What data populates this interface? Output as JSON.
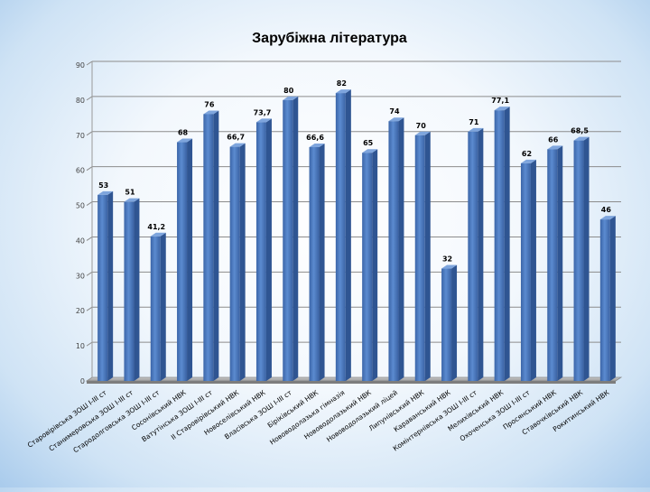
{
  "chart_data": {
    "type": "bar",
    "title": "Зарубіжна література",
    "xlabel": "",
    "ylabel": "",
    "ylim": [
      0,
      90
    ],
    "yticks": [
      "0",
      "10",
      "20",
      "30",
      "40",
      "50",
      "60",
      "70",
      "80",
      "90"
    ],
    "grid": true,
    "bar_color": "#4f7fc4",
    "categories": [
      "Старовірівська ЗОШ І-ІІІ ст",
      "Станимеровська ЗОШ І-ІІІ ст",
      "Стародолговська ЗОШ І-ІІІ ст",
      "Сосонівський НВК",
      "Ватутінська ЗОШ І-ІІІ ст",
      "ІІ Старовірівський НВК",
      "Новоселівський НВК",
      "Власівська ЗОШ І-ІІІ ст",
      "Біріківський НВК",
      "Нововодолазька гімназія",
      "Нововодолазький НВК",
      "Нововодолазький ліцей",
      "Липунівський НВК",
      "Караванський НВК",
      "Комінтернівська ЗОШ І-ІІІ ст",
      "Мелихівський НВК",
      "Охоченська ЗОШ І-ІІІ ст",
      "Просянський НВК",
      "Ставочківський НВК",
      "Рокитинський НВК"
    ],
    "values": [
      53,
      51,
      41.2,
      68,
      76,
      66.7,
      73.7,
      80,
      66.6,
      82,
      65,
      74,
      70,
      32,
      71,
      77.1,
      62,
      66,
      68.5,
      46
    ],
    "data_labels": [
      "53",
      "51",
      "41,2",
      "68",
      "76",
      "66,7",
      "73,7",
      "80",
      "66,6",
      "82",
      "65",
      "74",
      "70",
      "32",
      "71",
      "77,1",
      "62",
      "66",
      "68,5",
      "46"
    ]
  }
}
